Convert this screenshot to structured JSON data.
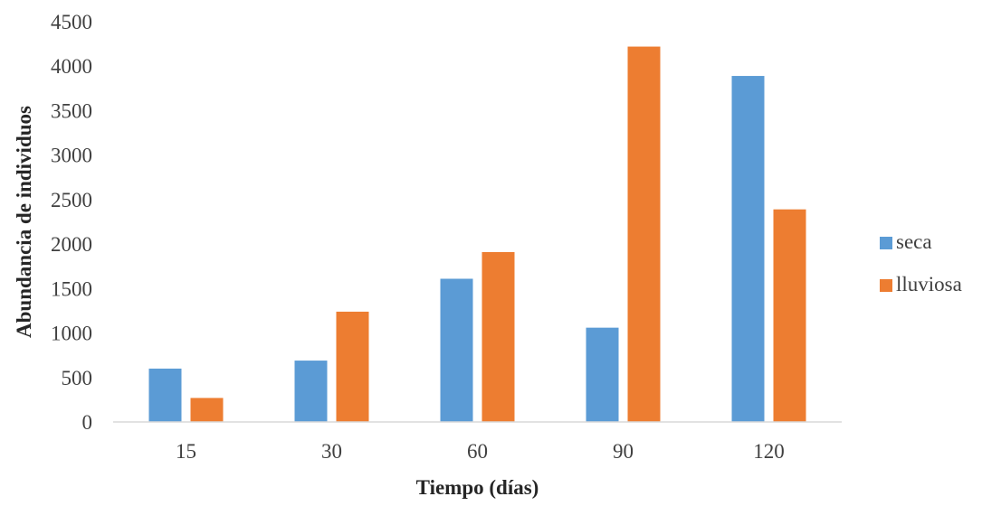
{
  "chart_data": {
    "type": "bar",
    "title": "",
    "xlabel": "Tiempo (días)",
    "ylabel": "Abundancia de individuos",
    "categories": [
      "15",
      "30",
      "60",
      "90",
      "120"
    ],
    "series": [
      {
        "name": "seca",
        "color": "#5b9bd5",
        "values": [
          600,
          690,
          1610,
          1060,
          3890
        ]
      },
      {
        "name": "lluviosa",
        "color": "#ed7d31",
        "values": [
          270,
          1240,
          1910,
          4220,
          2390
        ]
      }
    ],
    "ylim": [
      0,
      4500
    ],
    "yticks": [
      0,
      500,
      1000,
      1500,
      2000,
      2500,
      3000,
      3500,
      4000,
      4500
    ],
    "grid": false,
    "legend_position": "right"
  }
}
